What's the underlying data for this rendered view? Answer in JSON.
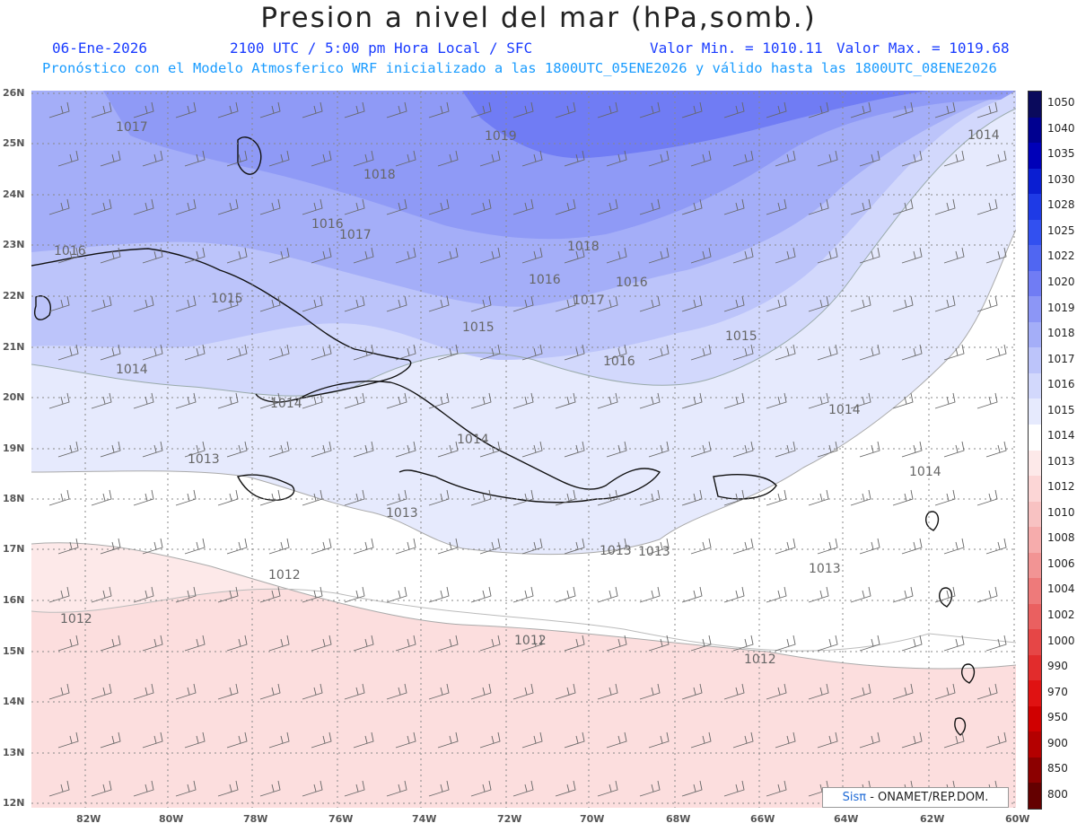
{
  "title": "Presion a nivel del mar (hPa,somb.)",
  "header": {
    "date": "06-Ene-2026",
    "time": "2100 UTC / 5:00 pm Hora Local / SFC",
    "min": "Valor Min. = 1010.11",
    "max": "Valor Max. = 1019.68",
    "forecast": "Pronóstico con el Modelo Atmosferico WRF inicializado a las 1800UTC_05ENE2026 y válido hasta las  1800UTC_08ENE2026"
  },
  "lat_labels": [
    "26N",
    "25N",
    "24N",
    "23N",
    "22N",
    "21N",
    "20N",
    "19N",
    "18N",
    "17N",
    "16N",
    "15N",
    "14N",
    "13N",
    "12N"
  ],
  "lon_labels": [
    "82W",
    "80W",
    "78W",
    "76W",
    "74W",
    "72W",
    "70W",
    "68W",
    "66W",
    "64W",
    "62W",
    "60W"
  ],
  "contour_labels": [
    {
      "text": "1019"
    },
    {
      "text": "1018"
    },
    {
      "text": "1017"
    },
    {
      "text": "1017"
    },
    {
      "text": "1018"
    },
    {
      "text": "1017"
    },
    {
      "text": "1016"
    },
    {
      "text": "1016"
    },
    {
      "text": "1016"
    },
    {
      "text": "1016"
    },
    {
      "text": "1015"
    },
    {
      "text": "1015"
    },
    {
      "text": "1015"
    },
    {
      "text": "1016"
    },
    {
      "text": "1014"
    },
    {
      "text": "1014"
    },
    {
      "text": "1014"
    },
    {
      "text": "1014"
    },
    {
      "text": "1014"
    },
    {
      "text": "1014"
    },
    {
      "text": "1013"
    },
    {
      "text": "1013"
    },
    {
      "text": "1013"
    },
    {
      "text": "1013"
    },
    {
      "text": "1012"
    },
    {
      "text": "1012"
    },
    {
      "text": "1012"
    },
    {
      "text": "1012"
    },
    {
      "text": "1013"
    }
  ],
  "colorbar": {
    "labels": [
      "1050",
      "1040",
      "1035",
      "1030",
      "1028",
      "1025",
      "1022",
      "1020",
      "1019",
      "1018",
      "1017",
      "1016",
      "1015",
      "1014",
      "1013",
      "1012",
      "1010",
      "1008",
      "1006",
      "1004",
      "1002",
      "1000",
      "990",
      "970",
      "950",
      "900",
      "850",
      "800"
    ],
    "colors": [
      "#0a0a5c",
      "#000090",
      "#0000b8",
      "#0a1ed2",
      "#1e3ae6",
      "#3250f0",
      "#5066f2",
      "#707cf4",
      "#8c96f6",
      "#a4aef8",
      "#bcc4fa",
      "#d2d8fc",
      "#e6eafd",
      "#ffffff",
      "#fde9e9",
      "#fcd6d6",
      "#f8c2c2",
      "#f6acac",
      "#f29494",
      "#ee7a7a",
      "#ea6060",
      "#e64646",
      "#e22c2c",
      "#e01212",
      "#d00000",
      "#b40000",
      "#8c0000",
      "#640000"
    ]
  },
  "credit": {
    "brand": "Sisπ",
    "text": " - ONAMET/REP.DOM."
  }
}
